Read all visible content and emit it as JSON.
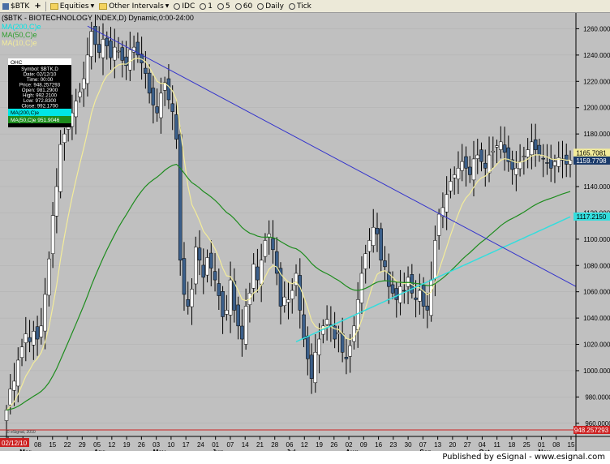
{
  "toolbar": {
    "symbol": "$BTK",
    "equities": "Equities",
    "other_intervals": "Other Intervals",
    "intervals": [
      "IDC",
      "1",
      "5",
      "60",
      "Daily",
      "Tick"
    ]
  },
  "chart_header": "($BTK - BIOTECHNOLOGY INDEX,D) Dynamic,0:00-24:00",
  "ma_labels": [
    {
      "text": "MA(200,C)e",
      "color": "#00e5e5"
    },
    {
      "text": "MA(50,C)e",
      "color": "#2e9e2e"
    },
    {
      "text": "MA(10,C)e",
      "color": "#f3ec9a"
    }
  ],
  "info_box": {
    "header": "OHC",
    "rows": [
      "Symbol: $BTK,D",
      "Date: 02/12/10",
      "Time: 00:00",
      "Price: 948.257293",
      "Open: 981.2900",
      "High: 992.2100",
      "Low: 972.8300",
      "Close: 992.1700"
    ],
    "ma_rows": [
      "MA(200,C)e",
      "MA(50,C)e 951.9046"
    ]
  },
  "watermark": "© eSignal, 2010",
  "date_box": "02/12/10",
  "footer": "Published by eSignal - www.esignal.com",
  "colors": {
    "background": "#c0c0c0",
    "up_candle": "#ffffff",
    "down_candle": "#3b5f8a",
    "ma10": "#f3ec9a",
    "ma50": "#1e8c1e",
    "ma200": "#33dddd",
    "trendline": "#3333cc",
    "last_price": "#1a3a6a",
    "cursor_price": "#cc2222"
  },
  "chart_data": {
    "type": "candlestick",
    "y_axis": {
      "range": [
        950,
        1272
      ],
      "ticks": [
        960,
        980,
        1000,
        1020,
        1040,
        1060,
        1080,
        1100,
        1120,
        1140,
        1160,
        1180,
        1200,
        1220,
        1240,
        1260
      ]
    },
    "x_ticks": [
      "22",
      "01",
      "08",
      "15",
      "22",
      "29",
      "05",
      "12",
      "19",
      "26",
      "03",
      "10",
      "17",
      "24",
      "01",
      "07",
      "14",
      "21",
      "28",
      "06",
      "12",
      "19",
      "26",
      "02",
      "09",
      "16",
      "23",
      "30",
      "07",
      "13",
      "20",
      "27",
      "04",
      "11",
      "18",
      "25",
      "01",
      "08",
      "15"
    ],
    "month_labels": [
      "Mar",
      "Apr",
      "May",
      "Jun",
      "Jul",
      "Aug",
      "Sep",
      "Oct",
      "Nov"
    ],
    "price_labels": {
      "ma10": "1165.7081",
      "last": "1159.7798",
      "ma200": "1117.2150",
      "cursor": "948.257293"
    },
    "closes": [
      970,
      986,
      992,
      1008,
      1018,
      1028,
      1022,
      1030,
      1024,
      1034,
      1058,
      1085,
      1118,
      1140,
      1172,
      1180,
      1188,
      1196,
      1205,
      1212,
      1222,
      1240,
      1258,
      1248,
      1242,
      1252,
      1247,
      1238,
      1246,
      1243,
      1236,
      1232,
      1244,
      1246,
      1240,
      1234,
      1226,
      1211,
      1202,
      1196,
      1211,
      1219,
      1206,
      1197,
      1176,
      1084,
      1058,
      1049,
      1062,
      1094,
      1084,
      1071,
      1086,
      1078,
      1069,
      1057,
      1041,
      1046,
      1069,
      1046,
      1034,
      1024,
      1049,
      1059,
      1081,
      1069,
      1084,
      1099,
      1104,
      1092,
      1074,
      1049,
      1056,
      1054,
      1061,
      1074,
      1046,
      1024,
      1009,
      994,
      1014,
      1024,
      1034,
      1039,
      1034,
      1024,
      1029,
      1014,
      1009,
      1019,
      1034,
      1054,
      1074,
      1089,
      1099,
      1109,
      1104,
      1084,
      1079,
      1064,
      1059,
      1054,
      1064,
      1061,
      1071,
      1059,
      1054,
      1061,
      1049,
      1046,
      1069,
      1099,
      1119,
      1124,
      1134,
      1144,
      1149,
      1154,
      1159,
      1154,
      1149,
      1161,
      1164,
      1159,
      1154,
      1164,
      1167,
      1171,
      1174,
      1166,
      1159,
      1153,
      1154,
      1159,
      1163,
      1168,
      1174,
      1168,
      1164,
      1161,
      1158,
      1154,
      1159,
      1162,
      1160,
      1157,
      1160
    ]
  }
}
